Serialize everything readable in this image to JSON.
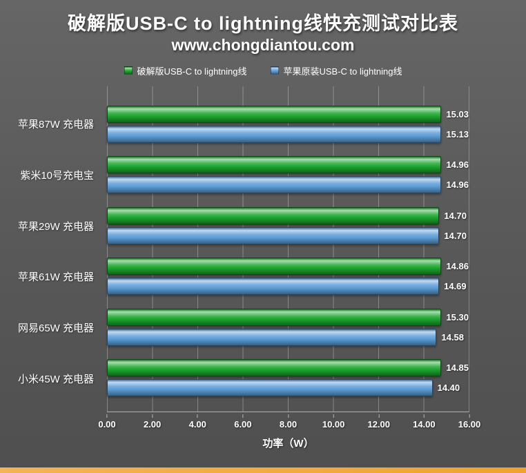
{
  "header": {
    "title": "破解版USB-C to lightning线快充测试对比表",
    "subtitle": "www.chongdiantou.com"
  },
  "legend": [
    {
      "label": "破解版USB-C to lightning线",
      "color": "#1ca52e"
    },
    {
      "label": "苹果原装USB-C to lightning线",
      "color": "#5b9bd5"
    }
  ],
  "colors": {
    "background": "#5a5a5a",
    "text": "#ffffff",
    "gridline": "rgba(255,255,255,0.30)",
    "accent_strip": "#efa32e"
  },
  "chart_data": {
    "type": "bar",
    "orientation": "horizontal",
    "title": "破解版USB-C to lightning线快充测试对比表",
    "subtitle": "www.chongdiantou.com",
    "categories": [
      "苹果87W 充电器",
      "紫米10号充电宝",
      "苹果29W 充电器",
      "苹果61W 充电器",
      "网易65W 充电器",
      "小米45W 充电器"
    ],
    "series": [
      {
        "name": "破解版USB-C to lightning线",
        "color": "#1ca52e",
        "values": [
          15.03,
          14.96,
          14.7,
          14.86,
          15.3,
          14.85
        ]
      },
      {
        "name": "苹果原装USB-C to lightning线",
        "color": "#5b9bd5",
        "values": [
          15.13,
          14.96,
          14.7,
          14.69,
          14.58,
          14.4
        ]
      }
    ],
    "xlabel": "功率（W）",
    "xlim": [
      0,
      16
    ],
    "xticks": [
      "0.00",
      "2.00",
      "4.00",
      "6.00",
      "8.00",
      "10.00",
      "12.00",
      "14.00",
      "16.00"
    ],
    "grid": true,
    "legend_position": "top",
    "value_label_decimals": 2
  }
}
